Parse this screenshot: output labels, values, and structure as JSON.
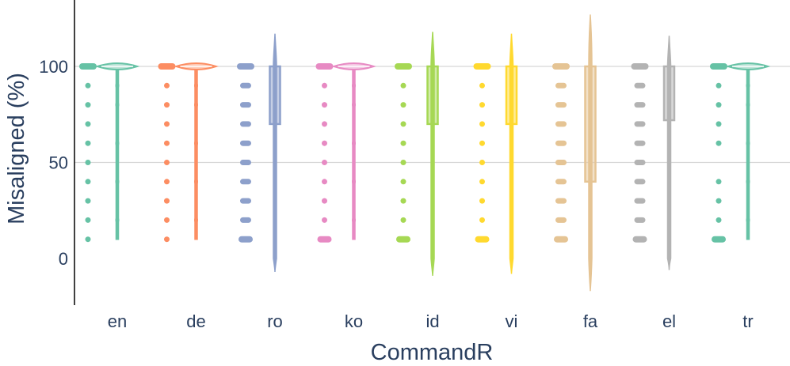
{
  "chart_data": {
    "type": "violin",
    "title": "",
    "xlabel": "CommandR",
    "ylabel": "Misaligned (%)",
    "ylim": [
      -25,
      135
    ],
    "yticks": [
      0,
      50,
      100
    ],
    "grid": true,
    "legend": "none",
    "categories": [
      "en",
      "de",
      "ro",
      "ko",
      "id",
      "vi",
      "fa",
      "el",
      "tr"
    ],
    "series": [
      {
        "category": "en",
        "color": "#66c2a5",
        "points": [
          10,
          20,
          30,
          40,
          50,
          60,
          70,
          80,
          90,
          100
        ],
        "violin_range": [
          10,
          100
        ],
        "median": 100,
        "q1": 100,
        "q3": 100,
        "whisker_range": [
          10,
          100
        ]
      },
      {
        "category": "de",
        "color": "#fc8d62",
        "points": [
          10,
          20,
          30,
          40,
          50,
          60,
          70,
          80,
          90,
          100
        ],
        "violin_range": [
          10,
          100
        ],
        "median": 100,
        "q1": 100,
        "q3": 100,
        "whisker_range": [
          10,
          100
        ]
      },
      {
        "category": "ro",
        "color": "#8da0cb",
        "points": [
          10,
          20,
          30,
          40,
          50,
          60,
          70,
          80,
          90,
          100
        ],
        "violin_range": [
          -7,
          117
        ],
        "median": 100,
        "q1": 70,
        "q3": 100,
        "whisker_range": [
          10,
          100
        ]
      },
      {
        "category": "ko",
        "color": "#e78ac3",
        "points": [
          10,
          20,
          30,
          40,
          50,
          60,
          70,
          80,
          90,
          100
        ],
        "violin_range": [
          10,
          100
        ],
        "median": 100,
        "q1": 100,
        "q3": 100,
        "whisker_range": [
          10,
          100
        ]
      },
      {
        "category": "id",
        "color": "#a6d854",
        "points": [
          10,
          20,
          30,
          40,
          50,
          60,
          70,
          80,
          90,
          100
        ],
        "violin_range": [
          -9,
          118
        ],
        "median": 100,
        "q1": 70,
        "q3": 100,
        "whisker_range": [
          10,
          100
        ]
      },
      {
        "category": "vi",
        "color": "#ffd92f",
        "points": [
          10,
          20,
          30,
          40,
          50,
          60,
          70,
          80,
          90,
          100
        ],
        "violin_range": [
          -8,
          117
        ],
        "median": 100,
        "q1": 70,
        "q3": 100,
        "whisker_range": [
          10,
          100
        ]
      },
      {
        "category": "fa",
        "color": "#e5c494",
        "points": [
          10,
          20,
          30,
          40,
          50,
          60,
          70,
          80,
          90,
          100
        ],
        "violin_range": [
          -17,
          127
        ],
        "median": 100,
        "q1": 40,
        "q3": 100,
        "whisker_range": [
          10,
          100
        ]
      },
      {
        "category": "el",
        "color": "#b3b3b3",
        "points": [
          10,
          20,
          30,
          40,
          50,
          60,
          70,
          80,
          90,
          100
        ],
        "violin_range": [
          -6,
          116
        ],
        "median": 100,
        "q1": 72,
        "q3": 100,
        "whisker_range": [
          10,
          100
        ]
      },
      {
        "category": "tr",
        "color": "#66c2a5",
        "points": [
          10,
          20,
          30,
          40,
          60,
          70,
          80,
          90,
          100
        ],
        "violin_range": [
          10,
          100
        ],
        "median": 100,
        "q1": 100,
        "q3": 100,
        "whisker_range": [
          10,
          100
        ]
      }
    ]
  }
}
